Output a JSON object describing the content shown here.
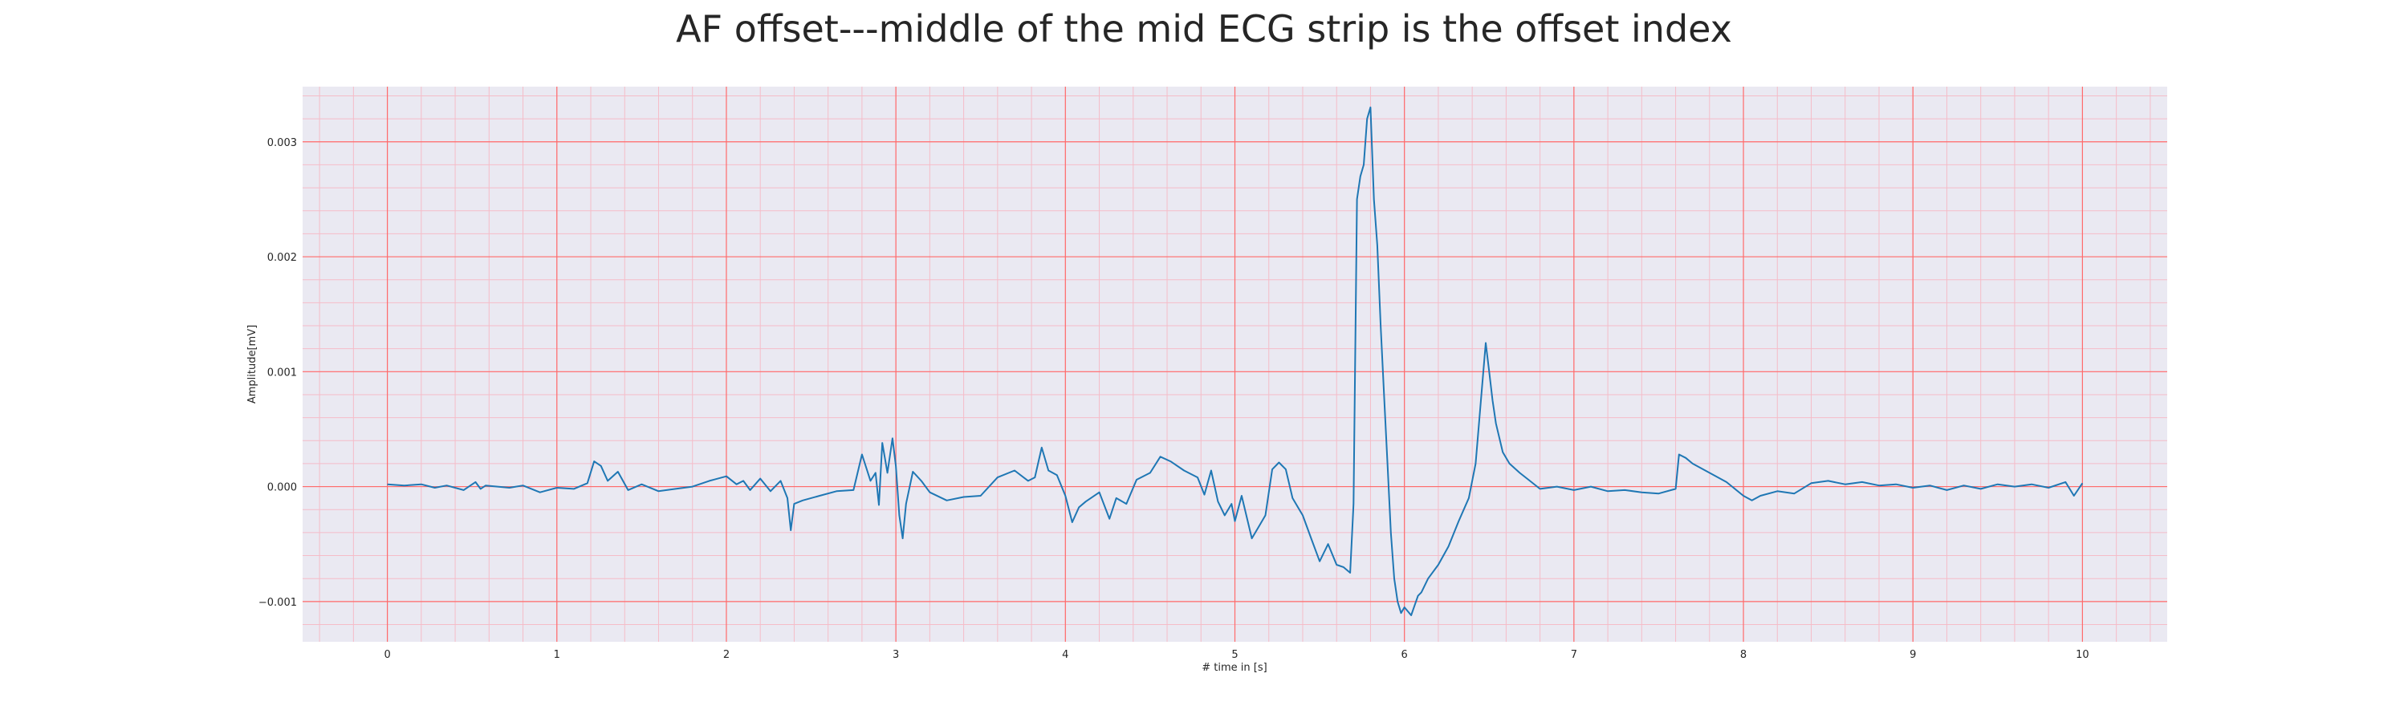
{
  "chart_data": {
    "type": "line",
    "title": "AF offset---middle of the mid ECG strip is the offset index",
    "xlabel": "# time in [s]",
    "ylabel": "Amplitude[mV]",
    "xlim": [
      -0.5,
      10.5
    ],
    "ylim": [
      -0.00135,
      0.00348
    ],
    "x_ticks": [
      0,
      1,
      2,
      3,
      4,
      5,
      6,
      7,
      8,
      9,
      10
    ],
    "y_ticks": [
      -0.001,
      0.0,
      0.001,
      0.002,
      0.003
    ],
    "y_tick_labels": [
      "−0.001",
      "0.000",
      "0.001",
      "0.002",
      "0.003"
    ],
    "grid": true,
    "major_grid_color": "#ff6b6b",
    "minor_grid_color": "#f5bcc8",
    "plot_background": "#eae9f2",
    "series": [
      {
        "color": "#1f77b4",
        "x": [
          0.0,
          0.1,
          0.2,
          0.28,
          0.35,
          0.45,
          0.52,
          0.55,
          0.58,
          0.65,
          0.72,
          0.8,
          0.9,
          1.0,
          1.1,
          1.18,
          1.22,
          1.26,
          1.3,
          1.36,
          1.42,
          1.5,
          1.6,
          1.7,
          1.8,
          1.9,
          2.0,
          2.06,
          2.1,
          2.14,
          2.2,
          2.26,
          2.32,
          2.36,
          2.38,
          2.4,
          2.45,
          2.55,
          2.65,
          2.75,
          2.8,
          2.85,
          2.88,
          2.9,
          2.92,
          2.95,
          2.98,
          3.0,
          3.02,
          3.04,
          3.06,
          3.1,
          3.15,
          3.2,
          3.3,
          3.4,
          3.5,
          3.6,
          3.7,
          3.78,
          3.82,
          3.86,
          3.9,
          3.95,
          4.0,
          4.04,
          4.08,
          4.12,
          4.2,
          4.26,
          4.3,
          4.36,
          4.42,
          4.5,
          4.56,
          4.62,
          4.7,
          4.78,
          4.82,
          4.86,
          4.9,
          4.94,
          4.98,
          5.0,
          5.04,
          5.1,
          5.14,
          5.18,
          5.22,
          5.26,
          5.3,
          5.34,
          5.4,
          5.45,
          5.5,
          5.55,
          5.6,
          5.64,
          5.68,
          5.7,
          5.72,
          5.74,
          5.76,
          5.78,
          5.8,
          5.82,
          5.84,
          5.86,
          5.88,
          5.9,
          5.92,
          5.94,
          5.96,
          5.98,
          6.0,
          6.04,
          6.08,
          6.1,
          6.14,
          6.2,
          6.26,
          6.32,
          6.38,
          6.42,
          6.46,
          6.48,
          6.5,
          6.52,
          6.54,
          6.58,
          6.62,
          6.68,
          6.74,
          6.8,
          6.9,
          7.0,
          7.1,
          7.2,
          7.3,
          7.4,
          7.5,
          7.6,
          7.62,
          7.66,
          7.7,
          7.8,
          7.9,
          8.0,
          8.05,
          8.1,
          8.2,
          8.3,
          8.4,
          8.5,
          8.6,
          8.7,
          8.8,
          8.9,
          9.0,
          9.1,
          9.2,
          9.3,
          9.4,
          9.5,
          9.6,
          9.7,
          9.8,
          9.9,
          9.95,
          10.0
        ],
        "y": [
          2e-05,
          1e-05,
          2e-05,
          -1e-05,
          1e-05,
          -3e-05,
          4e-05,
          -2e-05,
          1e-05,
          0.0,
          -1e-05,
          1e-05,
          -5e-05,
          -1e-05,
          -2e-05,
          3e-05,
          0.00022,
          0.00018,
          5e-05,
          0.00013,
          -3e-05,
          2e-05,
          -4e-05,
          -2e-05,
          0.0,
          5e-05,
          9e-05,
          2e-05,
          5e-05,
          -3e-05,
          7e-05,
          -4e-05,
          5e-05,
          -0.0001,
          -0.00038,
          -0.00015,
          -0.00012,
          -8e-05,
          -4e-05,
          -3e-05,
          0.00028,
          5e-05,
          0.00012,
          -0.00016,
          0.00038,
          0.00012,
          0.00042,
          0.00018,
          -0.00025,
          -0.00045,
          -0.00015,
          0.00013,
          5e-05,
          -5e-05,
          -0.00012,
          -9e-05,
          -8e-05,
          8e-05,
          0.00014,
          5e-05,
          8e-05,
          0.00034,
          0.00014,
          0.0001,
          -8e-05,
          -0.00031,
          -0.00018,
          -0.00013,
          -5e-05,
          -0.00028,
          -0.0001,
          -0.00015,
          6e-05,
          0.00012,
          0.00026,
          0.00022,
          0.00014,
          8e-05,
          -7e-05,
          0.00014,
          -0.00013,
          -0.00025,
          -0.00015,
          -0.0003,
          -8e-05,
          -0.00045,
          -0.00035,
          -0.00025,
          0.00015,
          0.00021,
          0.00015,
          -0.0001,
          -0.00025,
          -0.00045,
          -0.00065,
          -0.0005,
          -0.00068,
          -0.0007,
          -0.00075,
          -0.00015,
          0.0025,
          0.0027,
          0.0028,
          0.0032,
          0.0033,
          0.0025,
          0.0021,
          0.0014,
          0.0008,
          0.0002,
          -0.0004,
          -0.0008,
          -0.001,
          -0.0011,
          -0.00105,
          -0.00112,
          -0.00095,
          -0.00092,
          -0.0008,
          -0.00068,
          -0.00052,
          -0.0003,
          -0.0001,
          0.0002,
          0.0009,
          0.00125,
          0.001,
          0.00075,
          0.00055,
          0.0003,
          0.0002,
          0.00012,
          5e-05,
          -2e-05,
          0.0,
          -3e-05,
          0.0,
          -4e-05,
          -3e-05,
          -5e-05,
          -6e-05,
          -2e-05,
          0.00028,
          0.00025,
          0.0002,
          0.00012,
          4e-05,
          -8e-05,
          -0.00012,
          -8e-05,
          -4e-05,
          -6e-05,
          3e-05,
          5e-05,
          2e-05,
          4e-05,
          1e-05,
          2e-05,
          -1e-05,
          1e-05,
          -3e-05,
          1e-05,
          -2e-05,
          2e-05,
          0.0,
          2e-05,
          -1e-05,
          4e-05,
          -8e-05,
          3e-05
        ]
      }
    ]
  }
}
